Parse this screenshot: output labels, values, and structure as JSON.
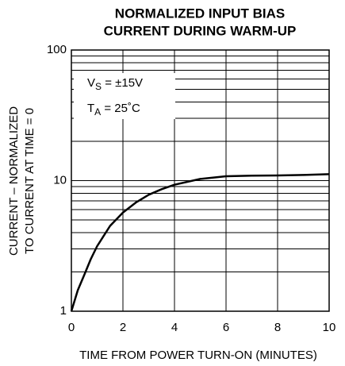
{
  "chart_data": {
    "type": "line",
    "title": [
      "NORMALIZED INPUT BIAS",
      "CURRENT DURING WARM-UP"
    ],
    "xlabel": "TIME FROM POWER TURN-ON (MINUTES)",
    "ylabel": [
      "CURRENT – NORMALIZED",
      "TO CURRENT AT TIME = 0"
    ],
    "annotations": [
      {
        "main": "V",
        "sub": "S",
        "rest": " = ±15V"
      },
      {
        "main": "T",
        "sub": "A",
        "rest": " = 25˚C"
      }
    ],
    "x": [
      0,
      0.25,
      0.5,
      0.75,
      1,
      1.5,
      2,
      2.5,
      3,
      3.5,
      4,
      5,
      6,
      7,
      8,
      9,
      10
    ],
    "series": [
      {
        "color": "#000000",
        "values": [
          1,
          1.45,
          1.9,
          2.5,
          3.15,
          4.5,
          5.7,
          6.8,
          7.8,
          8.6,
          9.3,
          10.3,
          10.8,
          10.9,
          10.95,
          11.05,
          11.2
        ]
      }
    ],
    "xlim": [
      0,
      10
    ],
    "xticks": [
      0,
      2,
      4,
      6,
      8,
      10
    ],
    "ylim": [
      1,
      100
    ],
    "yticks": [
      1,
      10,
      100
    ],
    "log_y": true,
    "yminor": [
      2,
      3,
      4,
      5,
      6,
      7,
      8,
      9,
      20,
      30,
      40,
      50,
      60,
      70,
      80,
      90
    ],
    "grid": true
  }
}
